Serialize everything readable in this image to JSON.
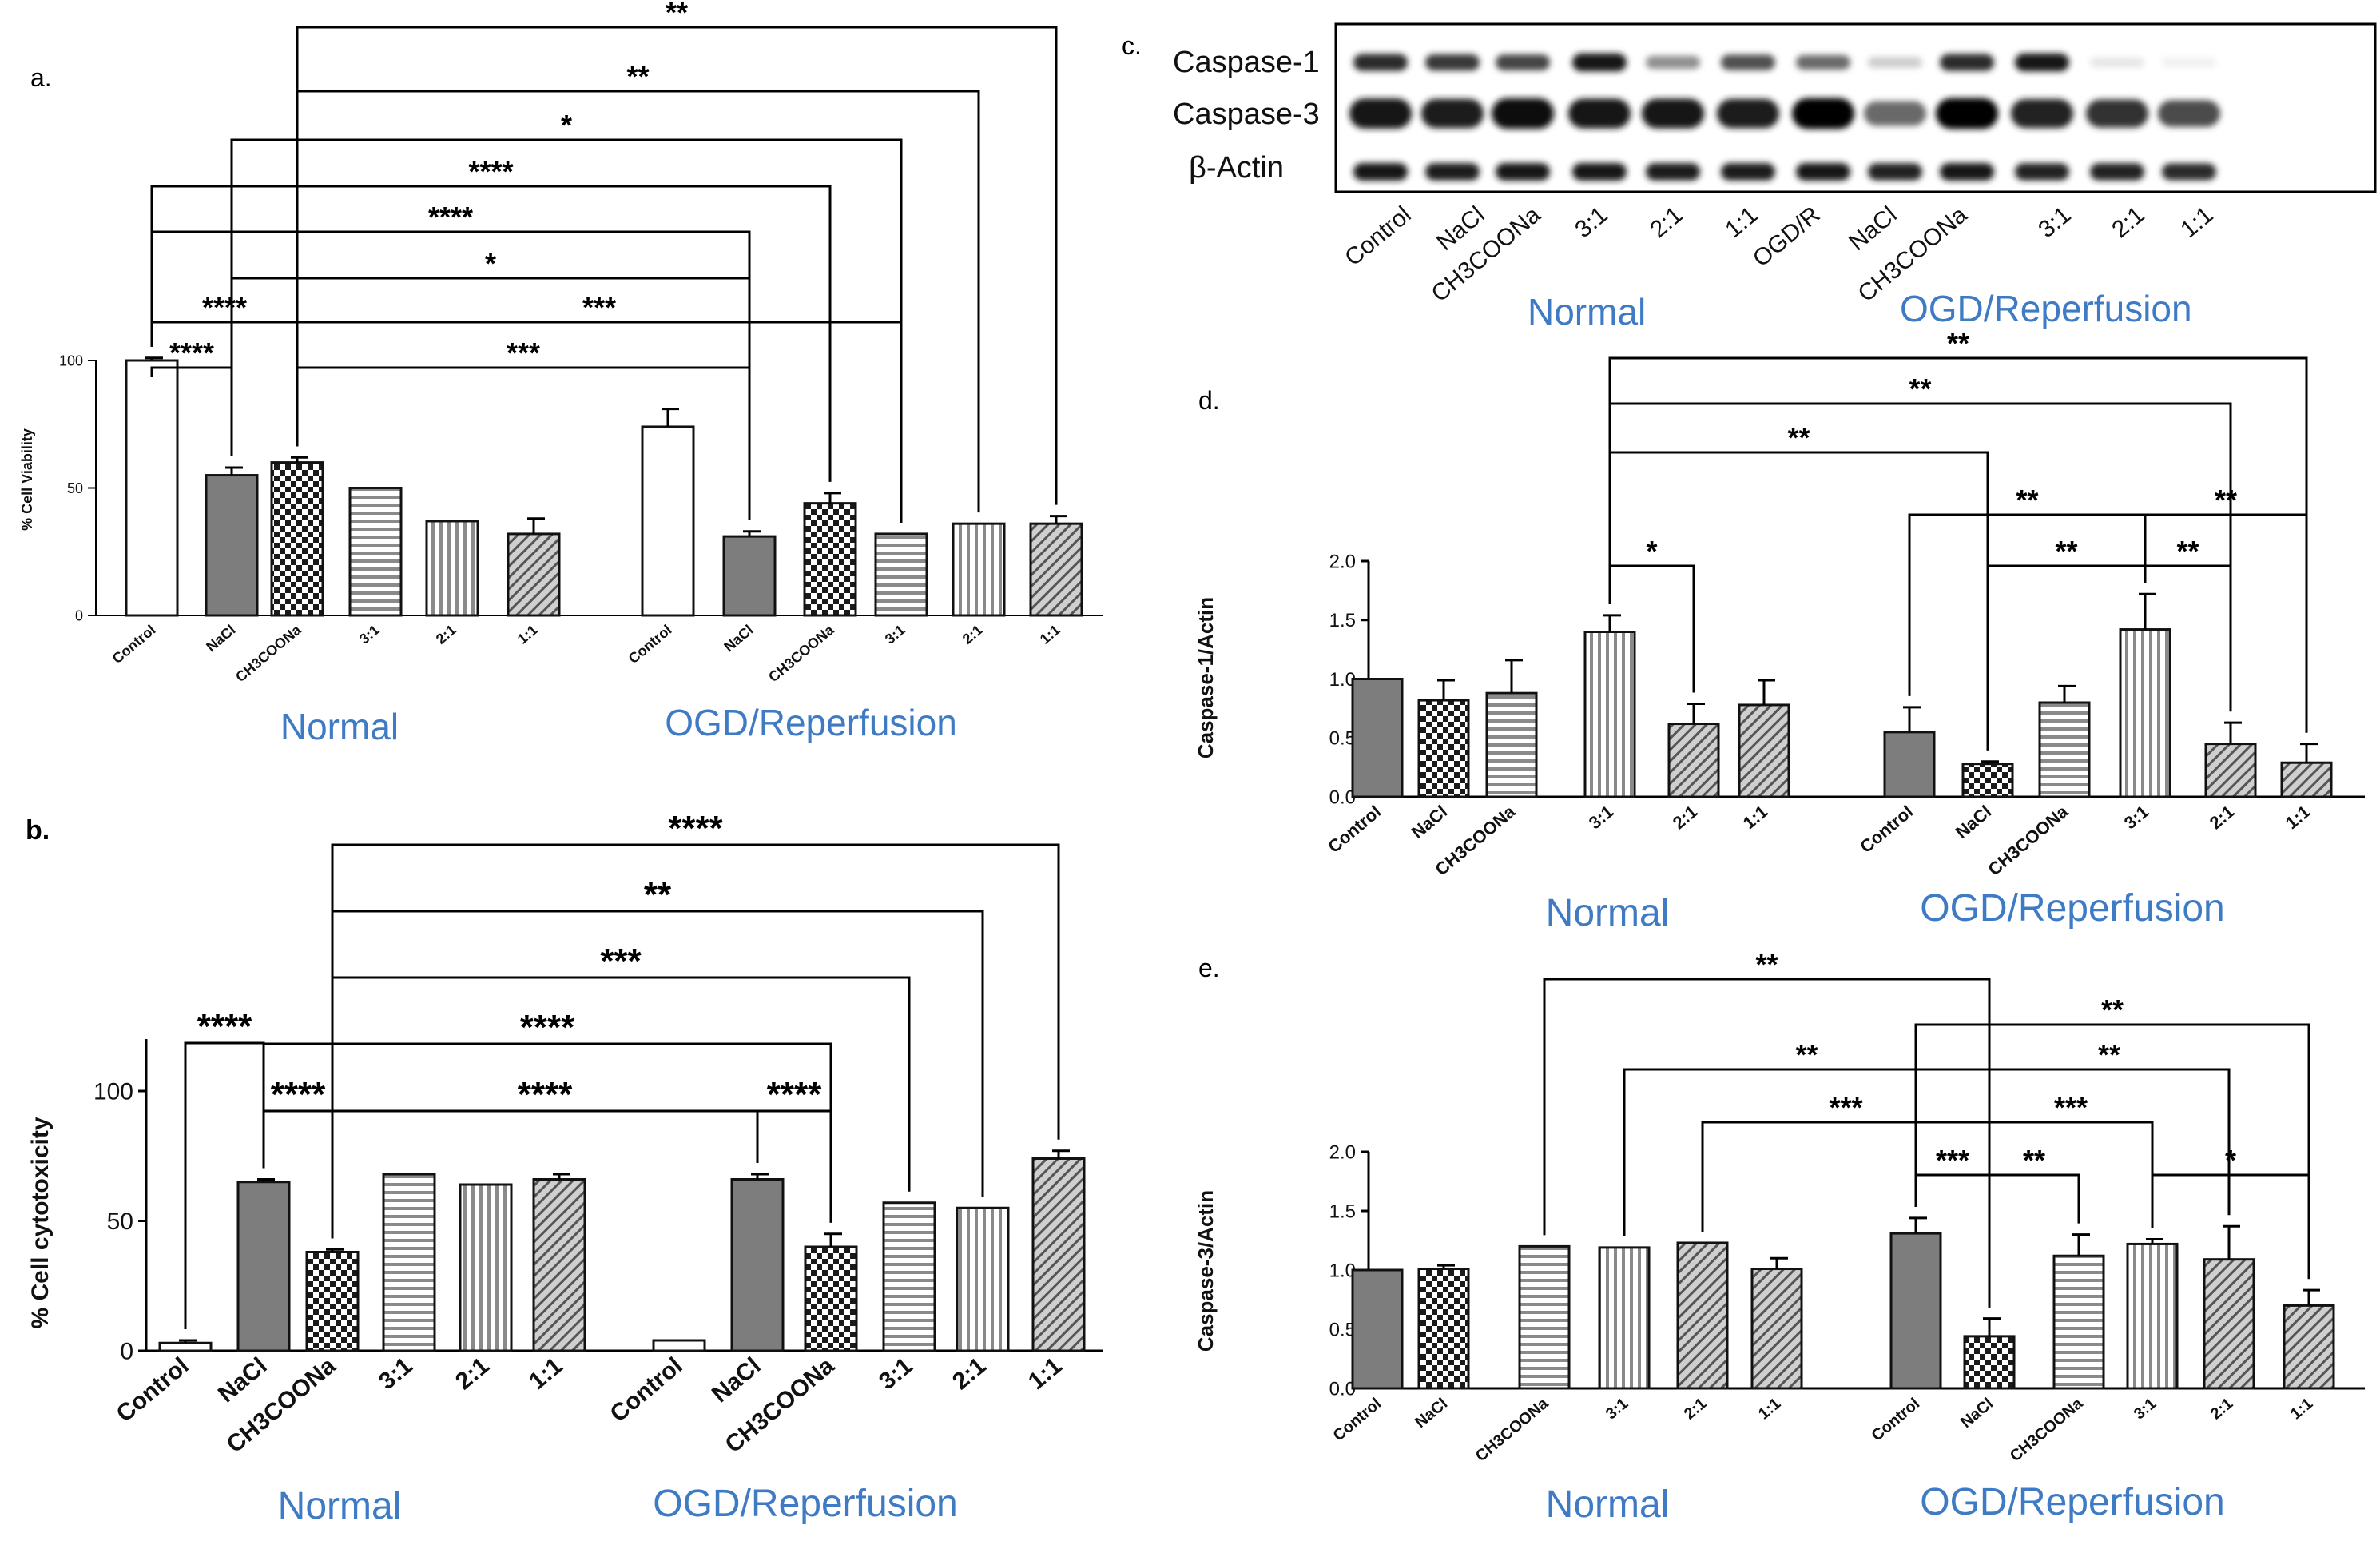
{
  "colors": {
    "group_label": "#3e7bc4",
    "bar_edge": "#111111",
    "dark_fill": "#7d7d7d",
    "mid_fill": "#b5b5b5",
    "light_fill": "#d2d2d2",
    "white_fill": "#ffffff"
  },
  "chart_data": [
    {
      "panel": "a.",
      "type": "bar",
      "ylabel": "% Cell Viability",
      "ylim": [
        0,
        100
      ],
      "yticks": [
        0,
        50,
        100
      ],
      "groups": [
        "Normal",
        "OGD/Reperfusion"
      ],
      "series": [
        {
          "group": "Normal",
          "categories": [
            "Control",
            "NaCl",
            "CH3COONa",
            "3:1",
            "2:1",
            "1:1"
          ],
          "values": [
            100,
            55,
            60,
            50,
            37,
            32
          ],
          "errors": [
            1,
            3,
            2,
            0,
            0,
            6
          ]
        },
        {
          "group": "OGD/Reperfusion",
          "categories": [
            "Control",
            "NaCl",
            "CH3COONa",
            "3:1",
            "2:1",
            "1:1"
          ],
          "values": [
            74,
            31,
            44,
            32,
            36,
            36
          ],
          "errors": [
            7,
            2,
            4,
            0,
            0,
            3
          ]
        }
      ],
      "significance": [
        {
          "label": "**",
          "from": "Normal/CH3COONa",
          "to": "OGD/Reperfusion/1:1"
        },
        {
          "label": "**",
          "from": "Normal/CH3COONa",
          "to": "OGD/Reperfusion/2:1"
        },
        {
          "label": "*",
          "from": "Normal/NaCl",
          "to": "OGD/Reperfusion/3:1"
        },
        {
          "label": "****",
          "from": "Normal/Control",
          "to": "OGD/Reperfusion/CH3COONa"
        },
        {
          "label": "****",
          "from": "Normal/Control",
          "to": "OGD/Reperfusion/NaCl"
        },
        {
          "label": "*",
          "from": "Normal/NaCl",
          "to": "OGD/Reperfusion/NaCl"
        },
        {
          "label": "****",
          "from": "Normal/Control",
          "to": "Normal/CH3COONa"
        },
        {
          "label": "***",
          "from": "Normal/CH3COONa",
          "to": "OGD/Reperfusion/3:1"
        },
        {
          "label": "****",
          "from": "Normal/Control",
          "to": "Normal/NaCl"
        },
        {
          "label": "***",
          "from": "Normal/CH3COONa",
          "to": "OGD/Reperfusion/NaCl"
        }
      ]
    },
    {
      "panel": "b.",
      "type": "bar",
      "ylabel": "% Cell cytotoxicity",
      "ylim": [
        0,
        120
      ],
      "yticks": [
        0,
        50,
        100
      ],
      "groups": [
        "Normal",
        "OGD/Reperfusion"
      ],
      "series": [
        {
          "group": "Normal",
          "categories": [
            "Control",
            "NaCl",
            "CH3COONa",
            "3:1",
            "2:1",
            "1:1"
          ],
          "values": [
            3,
            65,
            38,
            68,
            64,
            66
          ],
          "errors": [
            1,
            1,
            1,
            0,
            0,
            2
          ]
        },
        {
          "group": "OGD/Reperfusion",
          "categories": [
            "Control",
            "NaCl",
            "CH3COONa",
            "3:1",
            "2:1",
            "1:1"
          ],
          "values": [
            4,
            66,
            40,
            57,
            55,
            74
          ],
          "errors": [
            0,
            2,
            5,
            0,
            0,
            3
          ]
        }
      ],
      "significance": [
        {
          "label": "****",
          "from": "Normal/CH3COONa",
          "to": "OGD/Reperfusion/1:1"
        },
        {
          "label": "**",
          "from": "Normal/CH3COONa",
          "to": "OGD/Reperfusion/2:1"
        },
        {
          "label": "***",
          "from": "Normal/CH3COONa",
          "to": "OGD/Reperfusion/3:1"
        },
        {
          "label": "****",
          "from": "Normal/Control",
          "to": "Normal/NaCl"
        },
        {
          "label": "****",
          "from": "Normal/NaCl",
          "to": "OGD/Reperfusion/CH3COONa"
        },
        {
          "label": "****",
          "from": "Normal/NaCl",
          "to": "Normal/CH3COONa"
        },
        {
          "label": "****",
          "from": "Normal/CH3COONa",
          "to": "OGD/Reperfusion/NaCl"
        },
        {
          "label": "****",
          "from": "OGD/Reperfusion/NaCl",
          "to": "OGD/Reperfusion/CH3COONa"
        }
      ]
    },
    {
      "panel": "d.",
      "type": "bar",
      "ylabel": "Caspase-1/Actin",
      "ylim": [
        0,
        2.0
      ],
      "yticks": [
        0.0,
        0.5,
        1.0,
        1.5,
        2.0
      ],
      "ytick_labels": [
        "0.0",
        "0.5",
        "1.0",
        "1.5",
        "2.0"
      ],
      "groups": [
        "Normal",
        "OGD/Reperfusion"
      ],
      "series": [
        {
          "group": "Normal",
          "categories": [
            "Control",
            "NaCl",
            "CH3COONa",
            "3:1",
            "2:1",
            "1:1"
          ],
          "values": [
            1.0,
            0.82,
            0.88,
            1.4,
            0.62,
            0.78
          ],
          "errors": [
            0,
            0.17,
            0.28,
            0.14,
            0.17,
            0.21
          ]
        },
        {
          "group": "OGD/Reperfusion",
          "categories": [
            "Control",
            "NaCl",
            "CH3COONa",
            "3:1",
            "2:1",
            "1:1"
          ],
          "values": [
            0.55,
            0.28,
            0.8,
            1.42,
            0.45,
            0.29
          ],
          "errors": [
            0.21,
            0.02,
            0.14,
            0.3,
            0.18,
            0.16
          ]
        }
      ],
      "significance": [
        {
          "label": "**",
          "from": "Normal/3:1",
          "to": "OGD/Reperfusion/1:1"
        },
        {
          "label": "**",
          "from": "Normal/3:1",
          "to": "OGD/Reperfusion/2:1"
        },
        {
          "label": "**",
          "from": "Normal/3:1",
          "to": "OGD/Reperfusion/NaCl"
        },
        {
          "label": "**",
          "from": "OGD/Reperfusion/Control",
          "to": "OGD/Reperfusion/3:1"
        },
        {
          "label": "**",
          "from": "OGD/Reperfusion/3:1",
          "to": "OGD/Reperfusion/1:1"
        },
        {
          "label": "*",
          "from": "Normal/3:1",
          "to": "Normal/2:1"
        },
        {
          "label": "**",
          "from": "OGD/Reperfusion/NaCl",
          "to": "OGD/Reperfusion/3:1"
        },
        {
          "label": "**",
          "from": "OGD/Reperfusion/3:1",
          "to": "OGD/Reperfusion/2:1"
        }
      ]
    },
    {
      "panel": "e.",
      "type": "bar",
      "ylabel": "Caspase-3/Actin",
      "ylim": [
        0,
        2.0
      ],
      "yticks": [
        0.0,
        0.5,
        1.0,
        1.5,
        2.0
      ],
      "ytick_labels": [
        "0.0",
        "0.5",
        "1.0",
        "1.5",
        "2.0"
      ],
      "groups": [
        "Normal",
        "OGD/Reperfusion"
      ],
      "series": [
        {
          "group": "Normal",
          "categories": [
            "Control",
            "NaCl",
            "CH3COONa",
            "3:1",
            "2:1",
            "1:1"
          ],
          "values": [
            1.0,
            1.01,
            1.2,
            1.19,
            1.23,
            1.01
          ],
          "errors": [
            0,
            0.03,
            0,
            0,
            0,
            0.09
          ]
        },
        {
          "group": "OGD/Reperfusion",
          "categories": [
            "Control",
            "NaCl",
            "CH3COONa",
            "3:1",
            "2:1",
            "1:1"
          ],
          "values": [
            1.31,
            0.44,
            1.12,
            1.22,
            1.09,
            0.7
          ],
          "errors": [
            0.13,
            0.15,
            0.18,
            0.04,
            0.28,
            0.13
          ]
        }
      ],
      "significance": [
        {
          "label": "**",
          "from": "Normal/CH3COONa",
          "to": "OGD/Reperfusion/NaCl"
        },
        {
          "label": "**",
          "from": "OGD/Reperfusion/Control",
          "to": "OGD/Reperfusion/1:1"
        },
        {
          "label": "**",
          "from": "Normal/3:1",
          "to": "OGD/Reperfusion/NaCl"
        },
        {
          "label": "**",
          "from": "OGD/Reperfusion/NaCl",
          "to": "OGD/Reperfusion/2:1"
        },
        {
          "label": "***",
          "from": "Normal/2:1",
          "to": "OGD/Reperfusion/NaCl"
        },
        {
          "label": "***",
          "from": "OGD/Reperfusion/NaCl",
          "to": "OGD/Reperfusion/3:1"
        },
        {
          "label": "***",
          "from": "OGD/Reperfusion/Control",
          "to": "OGD/Reperfusion/NaCl"
        },
        {
          "label": "**",
          "from": "OGD/Reperfusion/NaCl",
          "to": "OGD/Reperfusion/CH3COONa"
        },
        {
          "label": "*",
          "from": "OGD/Reperfusion/3:1",
          "to": "OGD/Reperfusion/1:1"
        }
      ]
    }
  ],
  "western_blot": {
    "panel": "c.",
    "rows": [
      "Caspase-1",
      "Caspase-3",
      "β-Actin"
    ],
    "lanes": [
      "Control",
      "NaCl",
      "CH3COONa",
      "3:1",
      "2:1",
      "1:1",
      "OGD/R",
      "NaCl",
      "CH3COONa",
      "3:1",
      "2:1",
      "1:1"
    ],
    "intensity": [
      [
        0.85,
        0.8,
        0.75,
        0.95,
        0.45,
        0.7,
        0.6,
        0.2,
        0.85,
        0.95,
        0.1,
        0.06
      ],
      [
        0.95,
        0.9,
        0.98,
        0.92,
        0.92,
        0.9,
        1.0,
        0.6,
        1.0,
        0.88,
        0.82,
        0.72
      ],
      [
        0.92,
        0.9,
        0.92,
        0.92,
        0.9,
        0.9,
        0.92,
        0.88,
        0.92,
        0.88,
        0.88,
        0.85
      ]
    ],
    "groups": [
      "Normal",
      "OGD/Reperfusion"
    ]
  }
}
